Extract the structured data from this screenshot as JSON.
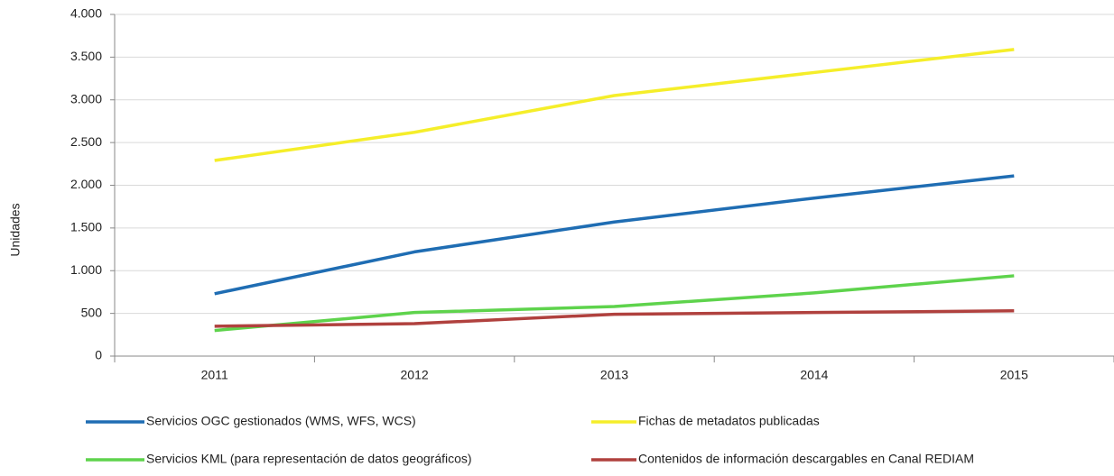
{
  "chart_data": {
    "type": "line",
    "y_label": "Unidades",
    "categories": [
      "2011",
      "2012",
      "2013",
      "2014",
      "2015"
    ],
    "series": [
      {
        "name": "Servicios OGC gestionados (WMS, WFS, WCS)",
        "color": "#1f6db3",
        "values": [
          730,
          1220,
          1570,
          1850,
          2110
        ]
      },
      {
        "name": "Fichas de metadatos publicadas",
        "color": "#f5ee2a",
        "values": [
          2290,
          2620,
          3050,
          3320,
          3590
        ]
      },
      {
        "name": "Servicios KML (para representación de datos geográficos)",
        "color": "#5ed34c",
        "values": [
          300,
          510,
          580,
          740,
          940
        ]
      },
      {
        "name": "Contenidos de información descargables en Canal REDIAM",
        "color": "#b0413e",
        "values": [
          350,
          380,
          490,
          510,
          530
        ]
      }
    ],
    "ylim": [
      0,
      4000
    ],
    "yticks": [
      0,
      500,
      {
        "value": 1000,
        "label": "1.000"
      },
      {
        "value": 1500,
        "label": "1.500"
      },
      {
        "value": 2000,
        "label": "2.000"
      },
      {
        "value": 2500,
        "label": "2.500"
      },
      {
        "value": 3000,
        "label": "3.000"
      },
      {
        "value": 3500,
        "label": "3.500"
      },
      {
        "value": 4000,
        "label": "4.000"
      }
    ],
    "grid": true
  }
}
